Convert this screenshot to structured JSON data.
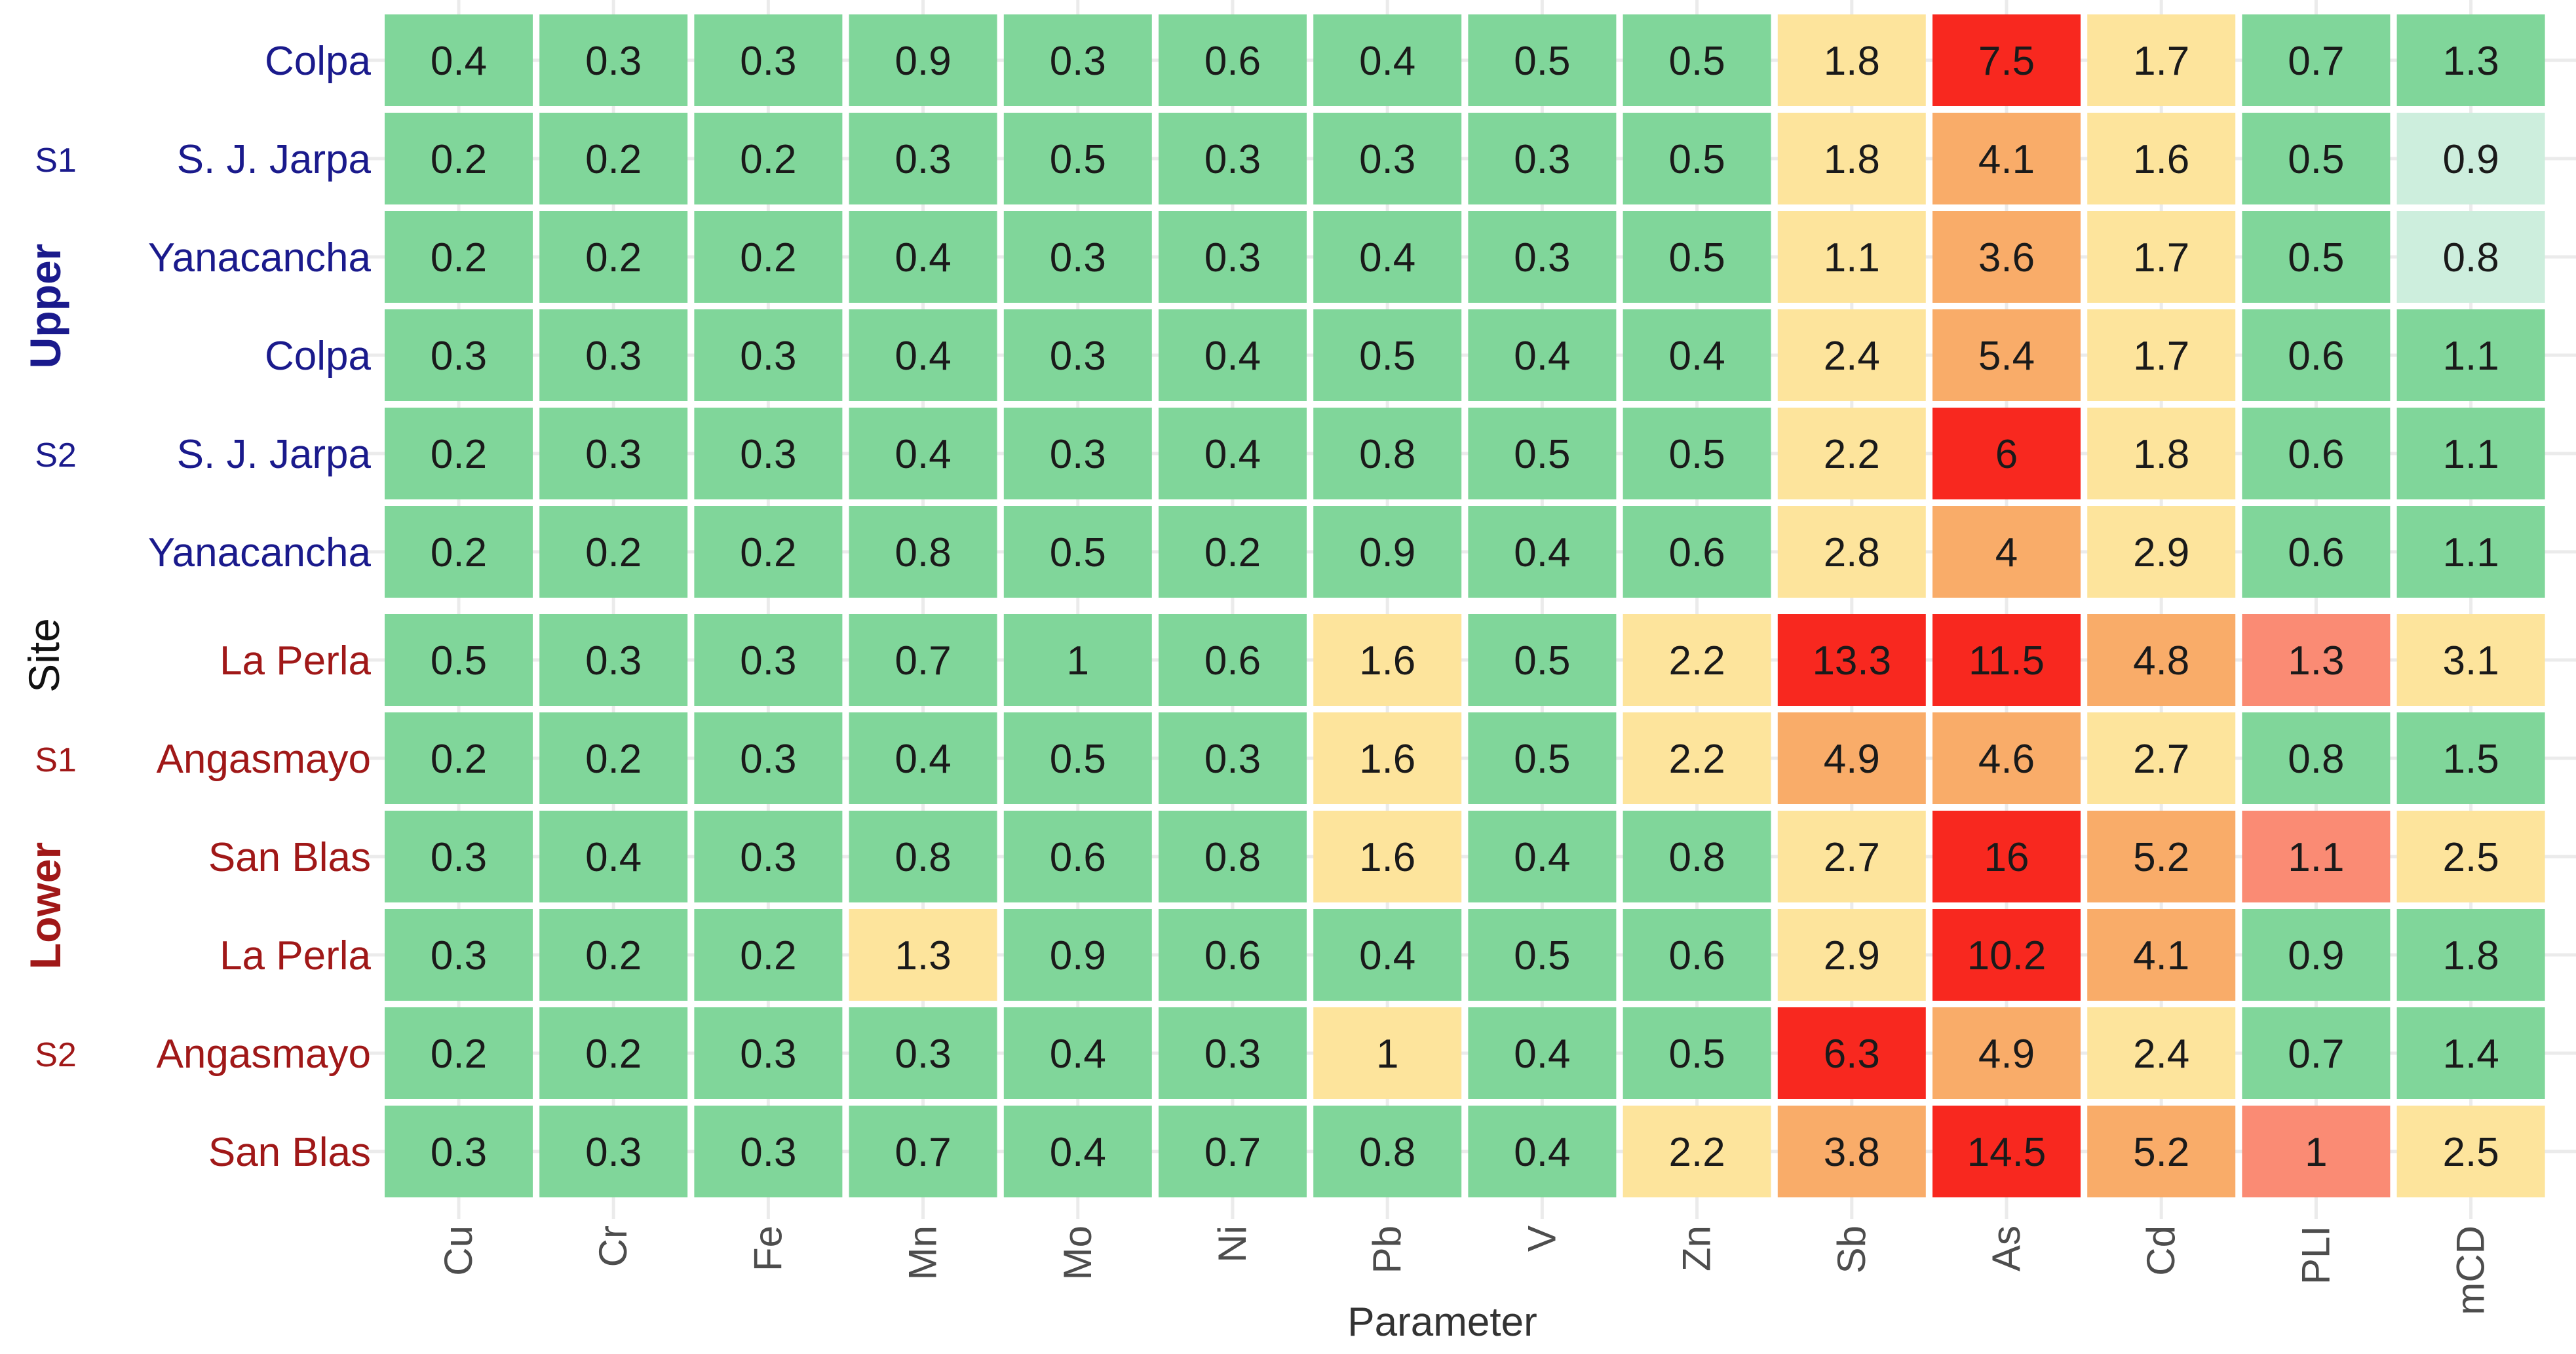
{
  "chart_data": {
    "type": "heatmap",
    "xlabel": "Parameter",
    "ylabel": "Site",
    "columns": [
      "Cu",
      "Cr",
      "Fe",
      "Mn",
      "Mo",
      "Ni",
      "Pb",
      "V",
      "Zn",
      "Sb",
      "As",
      "Cd",
      "PLI",
      "mCD"
    ],
    "groups": [
      {
        "name": "Upper",
        "color": "#1a1a8c",
        "subgroups": [
          {
            "name": "S1",
            "rows": [
              {
                "site": "Colpa",
                "values": [
                  "0.4",
                  "0.3",
                  "0.3",
                  "0.9",
                  "0.3",
                  "0.6",
                  "0.4",
                  "0.5",
                  "0.5",
                  "1.8",
                  "7.5",
                  "1.7",
                  "0.7",
                  "1.3"
                ],
                "levels": [
                  "g",
                  "g",
                  "g",
                  "g",
                  "g",
                  "g",
                  "g",
                  "g",
                  "g",
                  "y",
                  "r",
                  "y",
                  "g",
                  "g"
                ]
              },
              {
                "site": "S. J. Jarpa",
                "values": [
                  "0.2",
                  "0.2",
                  "0.2",
                  "0.3",
                  "0.5",
                  "0.3",
                  "0.3",
                  "0.3",
                  "0.5",
                  "1.8",
                  "4.1",
                  "1.6",
                  "0.5",
                  "0.9"
                ],
                "levels": [
                  "g",
                  "g",
                  "g",
                  "g",
                  "g",
                  "g",
                  "g",
                  "g",
                  "g",
                  "y",
                  "o",
                  "y",
                  "g",
                  "l"
                ]
              },
              {
                "site": "Yanacancha",
                "values": [
                  "0.2",
                  "0.2",
                  "0.2",
                  "0.4",
                  "0.3",
                  "0.3",
                  "0.4",
                  "0.3",
                  "0.5",
                  "1.1",
                  "3.6",
                  "1.7",
                  "0.5",
                  "0.8"
                ],
                "levels": [
                  "g",
                  "g",
                  "g",
                  "g",
                  "g",
                  "g",
                  "g",
                  "g",
                  "g",
                  "y",
                  "o",
                  "y",
                  "g",
                  "l"
                ]
              }
            ]
          },
          {
            "name": "S2",
            "rows": [
              {
                "site": "Colpa",
                "values": [
                  "0.3",
                  "0.3",
                  "0.3",
                  "0.4",
                  "0.3",
                  "0.4",
                  "0.5",
                  "0.4",
                  "0.4",
                  "2.4",
                  "5.4",
                  "1.7",
                  "0.6",
                  "1.1"
                ],
                "levels": [
                  "g",
                  "g",
                  "g",
                  "g",
                  "g",
                  "g",
                  "g",
                  "g",
                  "g",
                  "y",
                  "o",
                  "y",
                  "g",
                  "g"
                ]
              },
              {
                "site": "S. J. Jarpa",
                "values": [
                  "0.2",
                  "0.3",
                  "0.3",
                  "0.4",
                  "0.3",
                  "0.4",
                  "0.8",
                  "0.5",
                  "0.5",
                  "2.2",
                  "6",
                  "1.8",
                  "0.6",
                  "1.1"
                ],
                "levels": [
                  "g",
                  "g",
                  "g",
                  "g",
                  "g",
                  "g",
                  "g",
                  "g",
                  "g",
                  "y",
                  "r",
                  "y",
                  "g",
                  "g"
                ]
              },
              {
                "site": "Yanacancha",
                "values": [
                  "0.2",
                  "0.2",
                  "0.2",
                  "0.8",
                  "0.5",
                  "0.2",
                  "0.9",
                  "0.4",
                  "0.6",
                  "2.8",
                  "4",
                  "2.9",
                  "0.6",
                  "1.1"
                ],
                "levels": [
                  "g",
                  "g",
                  "g",
                  "g",
                  "g",
                  "g",
                  "g",
                  "g",
                  "g",
                  "y",
                  "o",
                  "y",
                  "g",
                  "g"
                ]
              }
            ]
          }
        ]
      },
      {
        "name": "Lower",
        "color": "#a01818",
        "subgroups": [
          {
            "name": "S1",
            "rows": [
              {
                "site": "La Perla",
                "values": [
                  "0.5",
                  "0.3",
                  "0.3",
                  "0.7",
                  "1",
                  "0.6",
                  "1.6",
                  "0.5",
                  "2.2",
                  "13.3",
                  "11.5",
                  "4.8",
                  "1.3",
                  "3.1"
                ],
                "levels": [
                  "g",
                  "g",
                  "g",
                  "g",
                  "g",
                  "g",
                  "y",
                  "g",
                  "y",
                  "r",
                  "r",
                  "o",
                  "s",
                  "y"
                ]
              },
              {
                "site": "Angasmayo",
                "values": [
                  "0.2",
                  "0.2",
                  "0.3",
                  "0.4",
                  "0.5",
                  "0.3",
                  "1.6",
                  "0.5",
                  "2.2",
                  "4.9",
                  "4.6",
                  "2.7",
                  "0.8",
                  "1.5"
                ],
                "levels": [
                  "g",
                  "g",
                  "g",
                  "g",
                  "g",
                  "g",
                  "y",
                  "g",
                  "y",
                  "o",
                  "o",
                  "y",
                  "g",
                  "g"
                ]
              },
              {
                "site": "San Blas",
                "values": [
                  "0.3",
                  "0.4",
                  "0.3",
                  "0.8",
                  "0.6",
                  "0.8",
                  "1.6",
                  "0.4",
                  "0.8",
                  "2.7",
                  "16",
                  "5.2",
                  "1.1",
                  "2.5"
                ],
                "levels": [
                  "g",
                  "g",
                  "g",
                  "g",
                  "g",
                  "g",
                  "y",
                  "g",
                  "g",
                  "y",
                  "r",
                  "o",
                  "s",
                  "y"
                ]
              }
            ]
          },
          {
            "name": "S2",
            "rows": [
              {
                "site": "La Perla",
                "values": [
                  "0.3",
                  "0.2",
                  "0.2",
                  "1.3",
                  "0.9",
                  "0.6",
                  "0.4",
                  "0.5",
                  "0.6",
                  "2.9",
                  "10.2",
                  "4.1",
                  "0.9",
                  "1.8"
                ],
                "levels": [
                  "g",
                  "g",
                  "g",
                  "y",
                  "g",
                  "g",
                  "g",
                  "g",
                  "g",
                  "y",
                  "r",
                  "o",
                  "g",
                  "g"
                ]
              },
              {
                "site": "Angasmayo",
                "values": [
                  "0.2",
                  "0.2",
                  "0.3",
                  "0.3",
                  "0.4",
                  "0.3",
                  "1",
                  "0.4",
                  "0.5",
                  "6.3",
                  "4.9",
                  "2.4",
                  "0.7",
                  "1.4"
                ],
                "levels": [
                  "g",
                  "g",
                  "g",
                  "g",
                  "g",
                  "g",
                  "y",
                  "g",
                  "g",
                  "r",
                  "o",
                  "y",
                  "g",
                  "g"
                ]
              },
              {
                "site": "San Blas",
                "values": [
                  "0.3",
                  "0.3",
                  "0.3",
                  "0.7",
                  "0.4",
                  "0.7",
                  "0.8",
                  "0.4",
                  "2.2",
                  "3.8",
                  "14.5",
                  "5.2",
                  "1",
                  "2.5"
                ],
                "levels": [
                  "g",
                  "g",
                  "g",
                  "g",
                  "g",
                  "g",
                  "g",
                  "g",
                  "y",
                  "o",
                  "r",
                  "o",
                  "s",
                  "y"
                ]
              }
            ]
          }
        ]
      }
    ],
    "level_colors": {
      "g": "#80d69a",
      "l": "#cdeedd",
      "y": "#fde49c",
      "o": "#f9ac69",
      "s": "#fa8b74",
      "r": "#f8281f"
    },
    "grid": true
  }
}
